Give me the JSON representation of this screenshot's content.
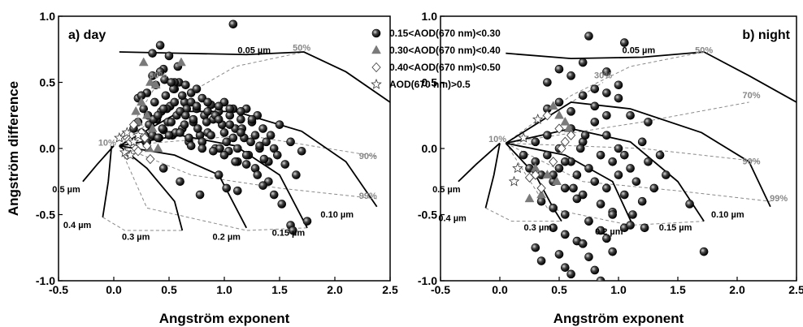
{
  "chart_data": [
    {
      "type": "scatter",
      "panel_label": "a) day",
      "xlabel": "Angström exponent",
      "ylabel": "Angström difference",
      "xlim": [
        -0.5,
        2.5
      ],
      "ylim": [
        -1.0,
        1.0
      ],
      "x_ticks": [
        "-0.5",
        "0.0",
        "0.5",
        "1.0",
        "1.5",
        "2.0",
        "2.5"
      ],
      "y_ticks": [
        "-1.0",
        "-0.5",
        "0.0",
        "0.5",
        "1.0"
      ],
      "grid": false,
      "size_curve_labels": [
        {
          "text": "0.05 µm",
          "x": 1.27,
          "y": 0.72
        },
        {
          "text": "0.10 µm",
          "x": 2.02,
          "y": -0.52
        },
        {
          "text": "0.15 µm",
          "x": 1.58,
          "y": -0.66
        },
        {
          "text": "0.2 µm",
          "x": 1.02,
          "y": -0.69
        },
        {
          "text": "0.3 µm",
          "x": 0.2,
          "y": -0.69
        },
        {
          "text": "0.4 µm",
          "x": -0.33,
          "y": -0.6
        },
        {
          "text": "0.5 µm",
          "x": -0.43,
          "y": -0.33
        }
      ],
      "fraction_labels": [
        {
          "text": "10%",
          "x": -0.06,
          "y": 0.02
        },
        {
          "text": "30%",
          "x": 0.4,
          "y": 0.53
        },
        {
          "text": "50%",
          "x": 1.7,
          "y": 0.74
        },
        {
          "text": "90%",
          "x": 2.3,
          "y": -0.08
        },
        {
          "text": "99%",
          "x": 2.3,
          "y": -0.38
        }
      ],
      "series": [
        {
          "name": "0.15<AOD(670 nm)<0.30",
          "marker": "ball",
          "x": [
            0.18,
            0.22,
            0.25,
            0.27,
            0.29,
            0.31,
            0.33,
            0.35,
            0.37,
            0.39,
            0.41,
            0.43,
            0.45,
            0.47,
            0.49,
            0.51,
            0.53,
            0.55,
            0.57,
            0.59,
            0.62,
            0.64,
            0.66,
            0.68,
            0.7,
            0.72,
            0.75,
            0.78,
            0.8,
            0.82,
            0.85,
            0.88,
            0.9,
            0.92,
            0.95,
            0.98,
            1.0,
            1.02,
            1.05,
            1.08,
            1.1,
            1.12,
            1.15,
            1.18,
            1.2,
            1.22,
            1.25,
            1.28,
            1.3,
            1.32,
            1.35,
            1.38,
            1.4,
            1.42,
            1.45,
            1.48,
            1.5,
            1.55,
            1.6,
            1.65,
            1.7,
            0.28,
            0.32,
            0.36,
            0.4,
            0.44,
            0.48,
            0.52,
            0.56,
            0.6,
            0.64,
            0.68,
            0.72,
            0.76,
            0.8,
            0.84,
            0.88,
            0.92,
            0.96,
            1.0,
            1.04,
            1.08,
            1.12,
            1.16,
            1.2,
            1.24,
            1.28,
            1.32,
            1.36,
            0.35,
            0.45,
            0.55,
            0.65,
            0.75,
            0.85,
            0.95,
            1.05,
            1.15,
            1.25,
            0.22,
            0.3,
            0.38,
            0.46,
            0.54,
            0.62,
            0.7,
            0.3,
            0.4,
            0.5,
            0.6,
            0.7,
            0.8,
            0.9,
            1.0,
            1.1,
            1.2,
            1.3,
            1.4,
            0.45,
            0.55,
            0.65,
            0.75,
            0.85,
            0.95,
            1.05,
            1.15,
            0.35,
            0.42,
            0.5,
            0.58,
            0.42,
            0.52,
            0.45,
            0.6,
            0.78,
            0.25,
            0.95,
            1.12,
            1.35,
            1.45,
            1.52,
            1.6,
            1.62,
            1.75,
            1.02,
            1.08
          ],
          "y": [
            0.15,
            0.2,
            0.12,
            0.3,
            0.05,
            0.25,
            0.18,
            0.1,
            0.35,
            0.22,
            0.08,
            0.28,
            0.14,
            0.4,
            0.2,
            0.32,
            0.1,
            0.45,
            0.25,
            0.5,
            0.15,
            0.35,
            0.3,
            0.05,
            0.42,
            0.2,
            0.3,
            0.1,
            0.38,
            0.25,
            0.12,
            0.33,
            0.22,
            0.0,
            0.28,
            0.18,
            0.35,
            0.05,
            0.25,
            0.3,
            0.15,
            0.0,
            0.22,
            0.08,
            0.3,
            -0.05,
            0.2,
            0.1,
            0.25,
            0.0,
            0.15,
            0.05,
            -0.1,
            0.1,
            0.0,
            -0.05,
            0.18,
            -0.12,
            0.05,
            -0.2,
            -0.02,
            0.1,
            0.18,
            0.22,
            0.25,
            0.15,
            0.3,
            0.2,
            0.12,
            0.28,
            0.18,
            0.08,
            0.22,
            0.15,
            0.05,
            0.2,
            0.1,
            0.25,
            0.0,
            0.12,
            -0.02,
            0.08,
            -0.1,
            0.15,
            -0.05,
            0.05,
            -0.15,
            0.02,
            -0.08,
            0.55,
            0.6,
            0.5,
            0.48,
            0.45,
            0.35,
            0.32,
            0.3,
            0.28,
            0.22,
            0.38,
            0.42,
            0.48,
            0.52,
            0.45,
            0.4,
            0.35,
            0.05,
            0.08,
            0.1,
            0.12,
            0.02,
            0.0,
            -0.02,
            -0.05,
            -0.1,
            -0.12,
            -0.2,
            -0.25,
            0.3,
            0.35,
            0.25,
            0.32,
            0.28,
            0.22,
            0.18,
            0.12,
            0.72,
            0.78,
            0.7,
            0.62,
            0.58,
            0.5,
            -0.15,
            -0.25,
            -0.35,
            0.4,
            -0.2,
            -0.32,
            -0.28,
            -0.35,
            -0.42,
            -0.58,
            -0.62,
            -0.55,
            -0.3,
            0.94
          ]
        },
        {
          "name": "0.30<AOD(670 nm)<0.40",
          "marker": "triangle",
          "x": [
            0.27,
            0.33,
            0.61,
            0.38,
            0.2,
            0.25,
            0.3,
            0.35,
            0.28,
            0.22,
            0.32,
            0.4
          ],
          "y": [
            0.65,
            0.5,
            0.65,
            0.48,
            0.28,
            0.35,
            0.25,
            0.15,
            0.1,
            0.2,
            0.0,
            0.0
          ]
        },
        {
          "name": "0.40<AOD(670 nm)<0.50",
          "marker": "diamond",
          "x": [
            0.1,
            0.15,
            0.2,
            0.25,
            0.3,
            0.18,
            0.22,
            0.28,
            0.12,
            0.33
          ],
          "y": [
            0.1,
            0.05,
            0.0,
            0.12,
            0.02,
            0.18,
            -0.02,
            0.08,
            -0.05,
            -0.08
          ]
        },
        {
          "name": "AOD(670 nm)>0.5",
          "marker": "star",
          "x": [
            0.05,
            0.12,
            0.18,
            0.22,
            0.1,
            0.15
          ],
          "y": [
            0.08,
            0.12,
            0.05,
            0.1,
            -0.03,
            -0.05
          ]
        }
      ]
    },
    {
      "type": "scatter",
      "panel_label": "b) night",
      "xlabel": "Angström exponent",
      "ylabel": "",
      "xlim": [
        -0.5,
        2.5
      ],
      "ylim": [
        -1.0,
        1.0
      ],
      "x_ticks": [
        "-0.5",
        "0.0",
        "0.5",
        "1.0",
        "1.5",
        "2.0",
        "2.5"
      ],
      "y_ticks": [
        "-1.0",
        "-0.5",
        "0.0",
        "0.5",
        "1.0"
      ],
      "grid": false,
      "size_curve_labels": [
        {
          "text": "0.05 µm",
          "x": 1.17,
          "y": 0.72
        },
        {
          "text": "0.10 µm",
          "x": 1.92,
          "y": -0.52
        },
        {
          "text": "0.15 µm",
          "x": 1.48,
          "y": -0.62
        },
        {
          "text": "0.2 µm",
          "x": 0.92,
          "y": -0.65
        },
        {
          "text": "0.3 µm",
          "x": 0.32,
          "y": -0.62
        },
        {
          "text": "0.4 µm",
          "x": -0.4,
          "y": -0.55
        },
        {
          "text": "0.5 µm",
          "x": -0.45,
          "y": -0.33
        }
      ],
      "fraction_labels": [
        {
          "text": "10%",
          "x": -0.02,
          "y": 0.05
        },
        {
          "text": "30%",
          "x": 0.87,
          "y": 0.53
        },
        {
          "text": "50%",
          "x": 1.72,
          "y": 0.72
        },
        {
          "text": "70%",
          "x": 2.12,
          "y": 0.38
        },
        {
          "text": "90%",
          "x": 2.12,
          "y": -0.12
        },
        {
          "text": "99%",
          "x": 2.35,
          "y": -0.4
        }
      ],
      "series": [
        {
          "name": "0.15<AOD(670 nm)<0.30",
          "marker": "ball",
          "x": [
            0.2,
            0.25,
            0.3,
            0.35,
            0.4,
            0.45,
            0.5,
            0.55,
            0.6,
            0.65,
            0.7,
            0.75,
            0.8,
            0.85,
            0.9,
            0.95,
            1.0,
            1.05,
            1.1,
            1.15,
            1.2,
            1.25,
            1.3,
            1.35,
            1.4,
            0.3,
            0.4,
            0.5,
            0.6,
            0.7,
            0.8,
            0.9,
            1.0,
            1.1,
            1.2,
            0.35,
            0.45,
            0.55,
            0.65,
            0.75,
            0.85,
            0.95,
            1.05,
            0.4,
            0.5,
            0.6,
            0.7,
            0.8,
            0.9,
            1.0,
            0.45,
            0.55,
            0.65,
            0.75,
            0.85,
            0.95,
            0.3,
            0.5,
            0.7,
            0.9,
            1.1,
            0.4,
            0.6,
            0.8,
            1.0,
            0.35,
            0.55,
            0.75,
            0.95,
            0.5,
            0.7,
            0.9,
            0.6,
            0.8,
            0.85,
            0.75,
            1.05,
            1.25,
            0.72,
            0.68,
            0.55,
            0.45,
            1.12,
            1.22,
            1.6,
            1.72,
            0.62,
            0.9,
            1.05
          ],
          "y": [
            -0.05,
            -0.15,
            -0.1,
            -0.2,
            -0.05,
            -0.25,
            -0.15,
            -0.3,
            -0.1,
            -0.2,
            -0.35,
            -0.15,
            -0.25,
            -0.05,
            -0.3,
            -0.1,
            -0.2,
            -0.35,
            -0.15,
            -0.25,
            -0.4,
            -0.1,
            -0.3,
            -0.05,
            -0.2,
            0.05,
            0.1,
            0.0,
            0.15,
            0.05,
            0.2,
            0.1,
            0.0,
            0.25,
            0.05,
            -0.4,
            -0.45,
            -0.5,
            -0.38,
            -0.55,
            -0.42,
            -0.48,
            -0.6,
            0.3,
            0.35,
            0.28,
            0.4,
            0.32,
            0.25,
            0.38,
            -0.6,
            -0.65,
            -0.7,
            -0.55,
            -0.62,
            -0.5,
            -0.75,
            -0.8,
            -0.72,
            -0.68,
            -0.58,
            0.5,
            0.55,
            0.45,
            0.48,
            -0.85,
            -0.9,
            -0.82,
            -0.78,
            0.6,
            0.65,
            0.58,
            -0.95,
            -0.92,
            -1.0,
            0.85,
            0.8,
            0.2,
            0.1,
            0.0,
            -0.1,
            -0.2,
            -0.5,
            -0.6,
            -0.42,
            -0.78,
            -0.3,
            0.42,
            -0.05
          ]
        },
        {
          "name": "0.30<AOD(670 nm)<0.40",
          "marker": "triangle",
          "x": [
            0.45,
            0.5,
            0.55,
            0.58,
            0.3,
            0.4,
            0.35,
            0.25,
            0.48
          ],
          "y": [
            0.32,
            0.25,
            0.2,
            0.15,
            -0.15,
            -0.2,
            -0.35,
            -0.38,
            -0.25
          ]
        },
        {
          "name": "0.40<AOD(670 nm)<0.50",
          "marker": "diamond",
          "x": [
            0.4,
            0.5,
            0.55,
            0.3,
            0.35,
            0.25,
            0.45,
            0.6,
            0.52
          ],
          "y": [
            0.25,
            0.15,
            0.05,
            -0.2,
            -0.3,
            -0.22,
            -0.1,
            0.1,
            0.0
          ]
        },
        {
          "name": "AOD(670 nm)>0.5",
          "marker": "star",
          "x": [
            0.32,
            0.15,
            0.12,
            0.2
          ],
          "y": [
            0.22,
            -0.15,
            -0.25,
            0.08
          ]
        }
      ]
    }
  ],
  "legend": {
    "placement": "top-center",
    "items": [
      {
        "label": "0.15<AOD(670 nm)<0.30",
        "marker": "ball"
      },
      {
        "label": "0.30<AOD(670 nm)<0.40",
        "marker": "triangle"
      },
      {
        "label": "0.40<AOD(670 nm)<0.50",
        "marker": "diamond"
      },
      {
        "label": "AOD(670 nm)>0.5",
        "marker": "star"
      }
    ]
  },
  "colors": {
    "ball": "#1a1a1a",
    "triangle": "#7a7a7a",
    "diamond": "#ffffff",
    "star": "#ffffff",
    "curve": "#000000",
    "fraction_line": "#8a8a8a"
  }
}
